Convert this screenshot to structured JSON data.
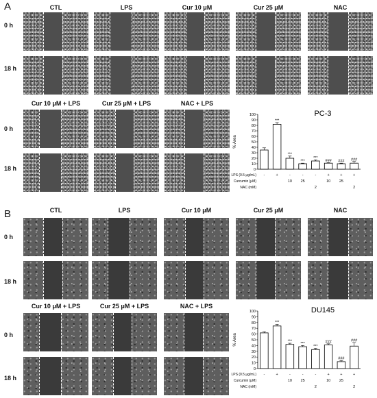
{
  "panels": [
    {
      "letter": "A",
      "top_columns": [
        "CTL",
        "LPS",
        "Cur 10 μM",
        "Cur 25 μM",
        "NAC"
      ],
      "bottom_columns": [
        "Cur 10 μM + LPS",
        "Cur 25 μM + LPS",
        "NAC + LPS"
      ],
      "rows": [
        "0 h",
        "18 h"
      ]
    },
    {
      "letter": "B",
      "top_columns": [
        "CTL",
        "LPS",
        "Cur 10 μM",
        "Cur 25 μM",
        "NAC"
      ],
      "bottom_columns": [
        "Cur 10 μM + LPS",
        "Cur 25 μM + LPS",
        "NAC + LPS"
      ],
      "rows": [
        "0 h",
        "18 h"
      ]
    }
  ],
  "chart_data": [
    {
      "type": "bar",
      "title": "PC-3",
      "ylabel": "% Area",
      "ylim": [
        0,
        100
      ],
      "yticks": [
        0,
        10,
        20,
        30,
        40,
        50,
        60,
        70,
        80,
        90,
        100
      ],
      "values": [
        35,
        82,
        20,
        10,
        15,
        11,
        10,
        11
      ],
      "errors": [
        4,
        3,
        4,
        1,
        2,
        1,
        1,
        3
      ],
      "significance": [
        "",
        "***",
        "***",
        "***",
        "***",
        "###",
        "###",
        "###"
      ],
      "treatment_rows": [
        {
          "label": "LPS (0.5 μg/mL)",
          "values": [
            "-",
            "+",
            "-",
            "-",
            "-",
            "+",
            "+",
            "+"
          ]
        },
        {
          "label": "Curcumin (μM)",
          "values": [
            "",
            "",
            "10",
            "25",
            "",
            "10",
            "25",
            ""
          ]
        },
        {
          "label": "NAC (mM)",
          "values": [
            "",
            "",
            "",
            "",
            "2",
            "",
            "",
            "2"
          ]
        }
      ]
    },
    {
      "type": "bar",
      "title": "DU145",
      "ylabel": "% Area",
      "ylim": [
        0,
        100
      ],
      "yticks": [
        0,
        10,
        20,
        30,
        40,
        50,
        60,
        70,
        80,
        90,
        100
      ],
      "values": [
        62,
        74,
        42,
        38,
        33,
        41,
        12,
        39
      ],
      "errors": [
        2,
        3,
        2,
        2,
        2,
        2,
        2,
        6
      ],
      "significance": [
        "",
        "***",
        "***",
        "***",
        "***",
        "###",
        "###",
        "###"
      ],
      "treatment_rows": [
        {
          "label": "LPS (0.5 μg/mL)",
          "values": [
            "-",
            "+",
            "-",
            "-",
            "-",
            "+",
            "+",
            "+"
          ]
        },
        {
          "label": "Curcumin (μM)",
          "values": [
            "",
            "",
            "10",
            "25",
            "",
            "10",
            "25",
            ""
          ]
        },
        {
          "label": "NAC (mM)",
          "values": [
            "",
            "",
            "",
            "",
            "2",
            "",
            "",
            "2"
          ]
        }
      ]
    }
  ]
}
